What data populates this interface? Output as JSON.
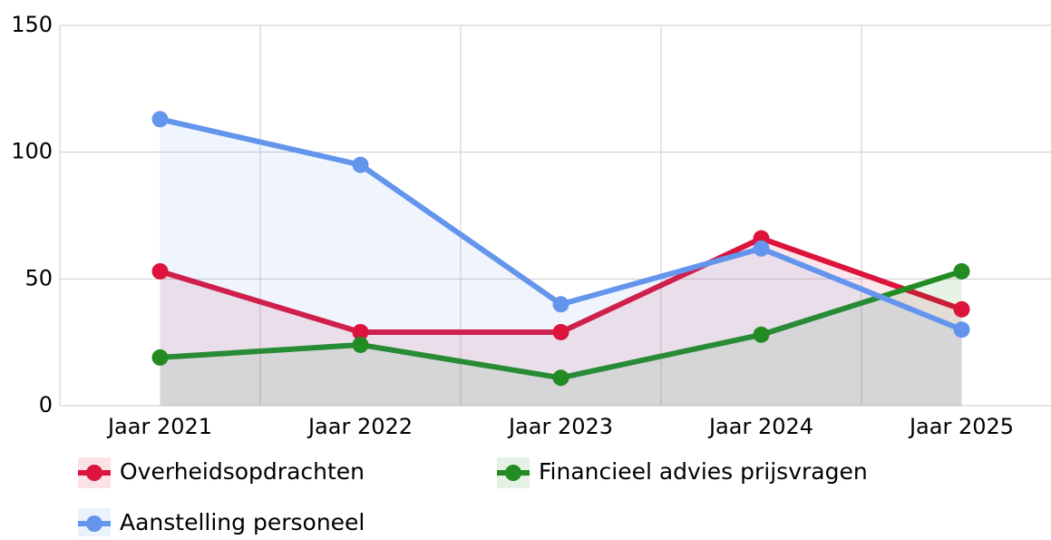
{
  "chart_data": {
    "type": "line",
    "categories": [
      "Jaar 2021",
      "Jaar 2022",
      "Jaar 2023",
      "Jaar 2024",
      "Jaar 2025"
    ],
    "series": [
      {
        "name": "Overheidsopdrachten",
        "color": "#dc143c",
        "values": [
          53,
          29,
          29,
          66,
          38
        ]
      },
      {
        "name": "Financieel advies prijsvragen",
        "color": "#228b22",
        "values": [
          19,
          24,
          11,
          28,
          53
        ]
      },
      {
        "name": "Aanstelling personeel",
        "color": "#6495ed",
        "values": [
          113,
          95,
          40,
          62,
          30
        ]
      }
    ],
    "area": true,
    "ylim": [
      0,
      150
    ],
    "yticks": [
      0,
      50,
      100,
      150
    ],
    "grid": true,
    "legend": "bottom"
  }
}
